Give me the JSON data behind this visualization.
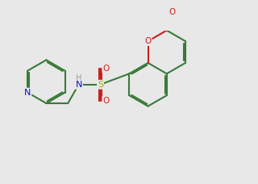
{
  "bg_color": "#e8e8e8",
  "bond_color": "#3a7a3a",
  "n_color": "#1010cc",
  "o_color": "#cc2020",
  "s_color": "#aaaa00",
  "h_color": "#999999",
  "lw": 1.5,
  "dbo": 0.055,
  "shrink": 0.08,
  "fs": 7.5,
  "xlim": [
    -1.0,
    8.5
  ],
  "ylim": [
    -1.5,
    4.2
  ]
}
